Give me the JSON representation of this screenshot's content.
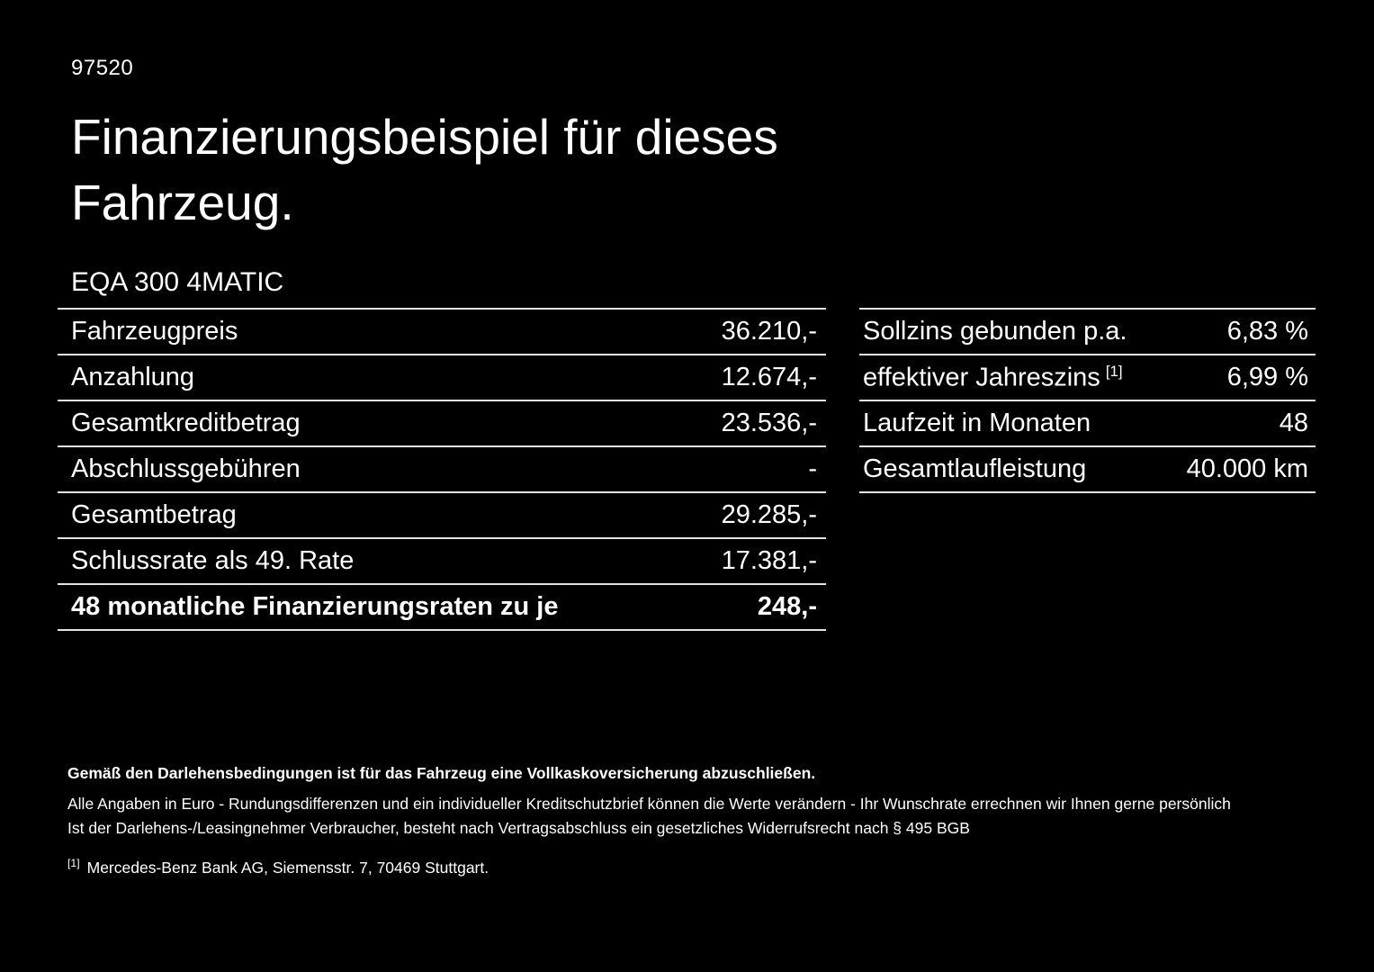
{
  "page": {
    "doc_number": "97520",
    "title_line1": "Finanzierungsbeispiel für dieses",
    "title_line2": "Fahrzeug.",
    "vehicle_model": "EQA 300 4MATIC"
  },
  "left_table": {
    "rows": [
      {
        "label": "Fahrzeugpreis",
        "value": "36.210,-"
      },
      {
        "label": "Anzahlung",
        "value": "12.674,-"
      },
      {
        "label": "Gesamtkreditbetrag",
        "value": "23.536,-"
      },
      {
        "label": "Abschlussgebühren",
        "value": "-"
      },
      {
        "label": "Gesamtbetrag",
        "value": "29.285,-"
      },
      {
        "label": "Schlussrate als 49. Rate",
        "value": "17.381,-"
      },
      {
        "label": "48 monatliche Finanzierungsraten zu je",
        "value": "248,-"
      }
    ]
  },
  "right_table": {
    "rows": [
      {
        "label": "Sollzins gebunden p.a.",
        "sup": "",
        "value": "6,83 %"
      },
      {
        "label": "effektiver Jahreszins",
        "sup": "[1]",
        "value": "6,99 %"
      },
      {
        "label": "Laufzeit in Monaten",
        "sup": "",
        "value": "48"
      },
      {
        "label": "Gesamtlaufleistung",
        "sup": "",
        "value": "40.000 km"
      }
    ]
  },
  "footer": {
    "bold_note": "Gemäß den Darlehensbedingungen ist für das Fahrzeug eine Vollkaskoversicherung abzuschließen.",
    "note1": "Alle Angaben in Euro - Rundungsdifferenzen und ein individueller Kreditschutzbrief können die Werte verändern - Ihr Wunschrate errechnen wir Ihnen gerne persönlich",
    "note2": "Ist der Darlehens-/Leasingnehmer Verbraucher, besteht nach Vertragsabschluss ein gesetzliches Widerrufsrecht nach § 495 BGB",
    "footnote_marker": "[1]",
    "footnote_text": "Mercedes-Benz Bank AG, Siemensstr. 7, 70469 Stuttgart."
  },
  "colors": {
    "background": "#000000",
    "text": "#ffffff",
    "divider": "#e3e3e3"
  }
}
